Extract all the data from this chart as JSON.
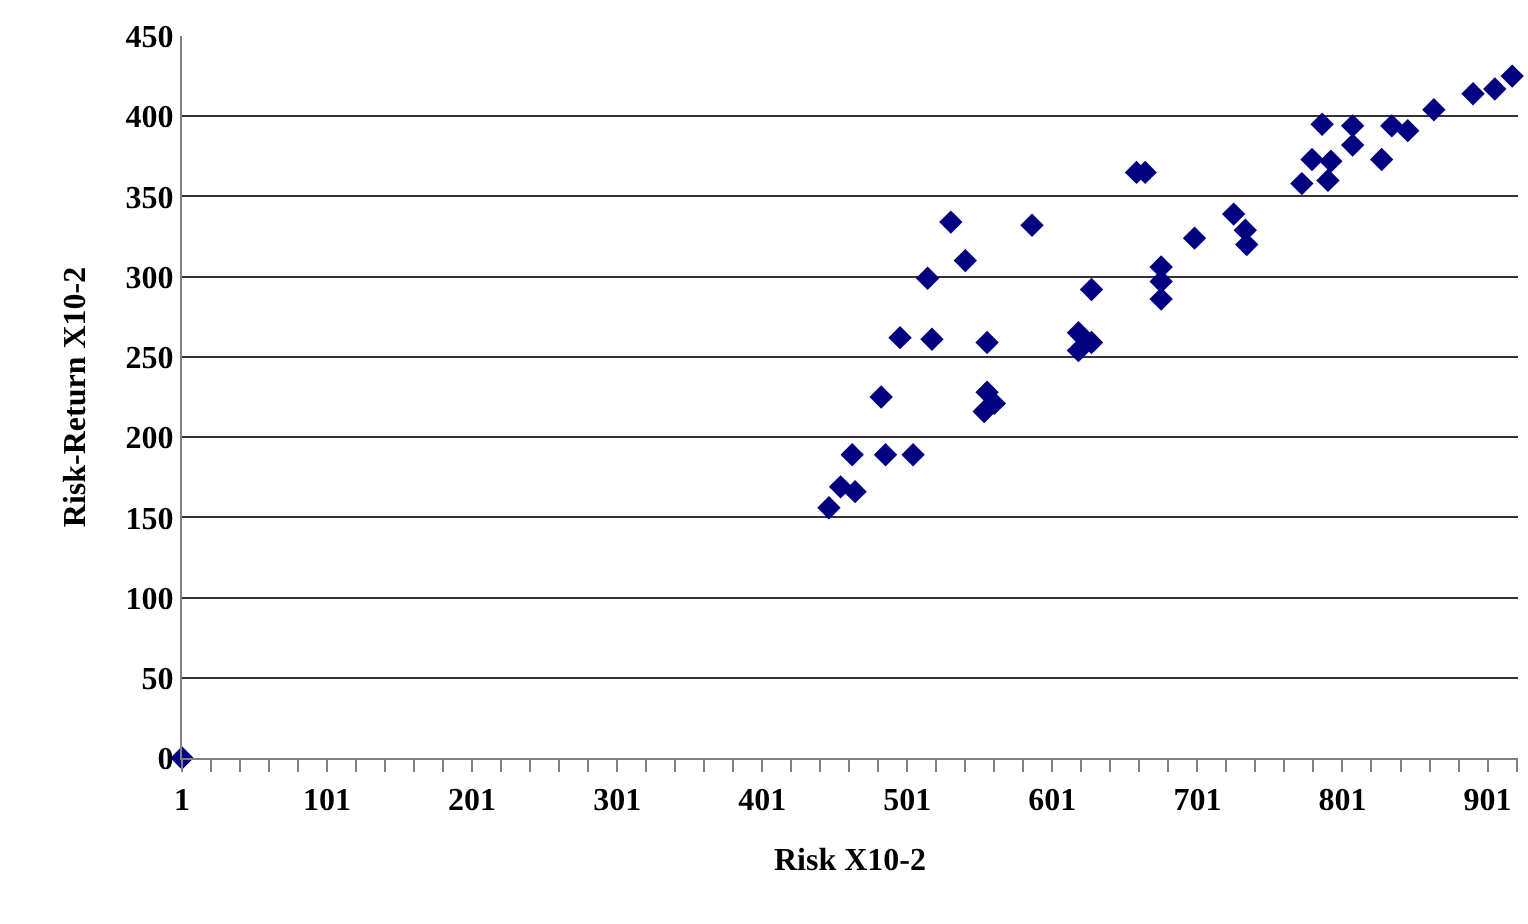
{
  "chart_data": {
    "type": "scatter",
    "xlabel": "Risk X10-2",
    "ylabel": "Risk-Return X10-2",
    "marker": "diamond",
    "grid": "y",
    "xlim": [
      1,
      922
    ],
    "xticks": [
      1,
      101,
      201,
      301,
      401,
      501,
      601,
      701,
      801,
      901
    ],
    "ylim": [
      0,
      450
    ],
    "yticks": [
      0,
      50,
      100,
      150,
      200,
      250,
      300,
      350,
      400,
      450
    ],
    "series": [
      {
        "color": "#000080",
        "x": [
          1,
          447,
          455,
          465,
          463,
          486,
          505,
          483,
          554,
          561,
          556,
          496,
          518,
          556,
          619,
          628,
          619,
          515,
          541,
          531,
          587,
          628,
          676,
          676,
          676,
          699,
          659,
          665,
          726,
          734,
          735,
          773,
          780,
          787,
          793,
          791,
          808,
          808,
          828,
          835,
          846,
          864,
          891,
          906,
          918
        ],
        "values": [
          0,
          156,
          169,
          166,
          189,
          189,
          189,
          225,
          216,
          221,
          228,
          262,
          261,
          259,
          265,
          259,
          254,
          299,
          310,
          334,
          332,
          292,
          306,
          297,
          286,
          324,
          365,
          365,
          339,
          329,
          320,
          358,
          373,
          395,
          372,
          360,
          394,
          382,
          373,
          394,
          391,
          404,
          414,
          417,
          425
        ]
      }
    ]
  }
}
